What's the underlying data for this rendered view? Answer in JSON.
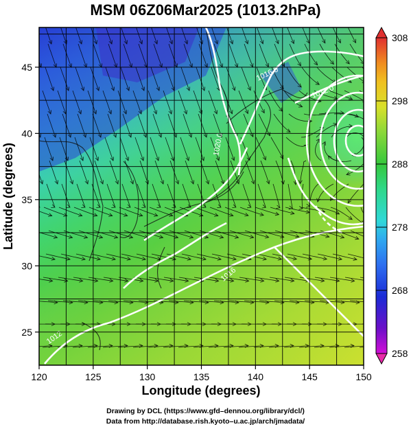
{
  "title": "MSM 06Z06Mar2025 (1013.2hPa)",
  "chart_data": {
    "type": "map",
    "projection": "equirectangular",
    "lon_range": [
      120,
      150
    ],
    "lat_range": [
      22.5,
      48
    ],
    "xlabel": "Longitude (degrees)",
    "ylabel": "Latitude  (degrees)",
    "x_ticks": [
      120,
      125,
      130,
      135,
      140,
      145,
      150
    ],
    "y_ticks": [
      25,
      30,
      35,
      40,
      45
    ],
    "gridlines": true,
    "colorbar": {
      "variable_range": [
        258,
        308
      ],
      "labels": [
        308,
        298,
        288,
        278,
        268,
        258
      ],
      "colors": [
        "#d10fd6",
        "#6b10c8",
        "#1b2bd6",
        "#2e6ff0",
        "#2fa8f0",
        "#2fd8d8",
        "#2fd88a",
        "#36c83c",
        "#8ad83a",
        "#d8e02a",
        "#f0c020",
        "#f08c20",
        "#e8502a",
        "#e03030"
      ]
    },
    "pressure_contours": [
      {
        "label": "1016.0",
        "level": 1016.0
      },
      {
        "label": "1012.0",
        "level": 1012.0
      },
      {
        "label": "1020.0",
        "level": 1020.0
      },
      {
        "label": "1016",
        "level": 1016.0
      },
      {
        "label": "1012",
        "level": 1012.0
      }
    ]
  },
  "credits": {
    "line1": "Drawing by DCL (https://www.gfd–dennou.org/library/dcl/)",
    "line2": "Data from http://database.rish.kyoto–u.ac.jp/arch/jmadata/"
  }
}
